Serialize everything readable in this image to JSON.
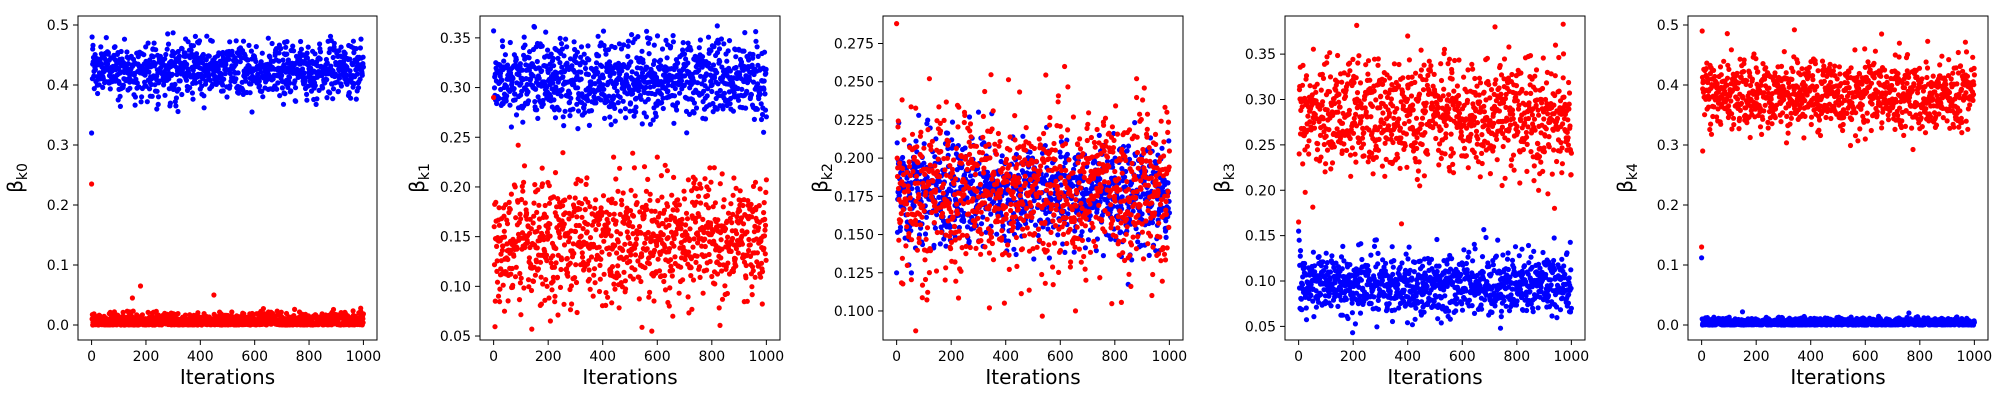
{
  "figure": {
    "background": "#ffffff",
    "colors": {
      "blue": "#0000ff",
      "red": "#ff0000"
    }
  },
  "chart_data": [
    {
      "type": "scatter",
      "xlabel": "Iterations",
      "ylabel": "β_k0",
      "ylabel_base": "β",
      "ylabel_sub": "k0",
      "xlim": [
        -50,
        1050
      ],
      "ylim": [
        -0.025,
        0.515
      ],
      "xticks": [
        0,
        200,
        400,
        600,
        800,
        1000
      ],
      "yticks": [
        0.0,
        0.1,
        0.2,
        0.3,
        0.4,
        0.5
      ],
      "ytick_labels": [
        "0.0",
        "0.1",
        "0.2",
        "0.3",
        "0.4",
        "0.5"
      ],
      "iterations": 1000,
      "series": [
        {
          "color": "#0000ff",
          "mean": 0.425,
          "spread": 0.022,
          "initial": [
            0.32,
            0.48,
            0.46
          ],
          "points": [
            [
              300,
              0.487
            ],
            [
              650,
              0.478
            ],
            [
              240,
              0.36
            ],
            [
              590,
              0.355
            ]
          ]
        },
        {
          "color": "#ff0000",
          "mean": 0.006,
          "spread": 0.008,
          "min": 0.0,
          "initial": [
            0.235,
            0.01
          ],
          "points": [
            [
              180,
              0.065
            ],
            [
              450,
              0.05
            ],
            [
              150,
              0.045
            ],
            [
              990,
              0.028
            ]
          ]
        }
      ]
    },
    {
      "type": "scatter",
      "xlabel": "Iterations",
      "ylabel": "β_k1",
      "ylabel_base": "β",
      "ylabel_sub": "k1",
      "xlim": [
        -50,
        1050
      ],
      "ylim": [
        0.046,
        0.372
      ],
      "xticks": [
        0,
        200,
        400,
        600,
        800,
        1000
      ],
      "yticks": [
        0.05,
        0.1,
        0.15,
        0.2,
        0.25,
        0.3,
        0.35
      ],
      "ytick_labels": [
        "0.05",
        "0.10",
        "0.15",
        "0.20",
        "0.25",
        "0.30",
        "0.35"
      ],
      "iterations": 1000,
      "series": [
        {
          "color": "#0000ff",
          "mean": 0.308,
          "spread": 0.02,
          "initial": [
            0.357,
            0.29
          ],
          "points": [
            [
              820,
              0.362
            ],
            [
              990,
              0.255
            ]
          ]
        },
        {
          "color": "#ff0000",
          "mean": 0.145,
          "spread": 0.03,
          "initial": [
            0.29,
            0.16
          ],
          "points": [
            [
              40,
              0.075
            ],
            [
              580,
              0.055
            ],
            [
              440,
              0.23
            ],
            [
              510,
              0.234
            ],
            [
              600,
              0.23
            ]
          ]
        }
      ]
    },
    {
      "type": "scatter",
      "xlabel": "Iterations",
      "ylabel": "β_k2",
      "ylabel_base": "β",
      "ylabel_sub": "k2",
      "xlim": [
        -50,
        1050
      ],
      "ylim": [
        0.081,
        0.293
      ],
      "xticks": [
        0,
        200,
        400,
        600,
        800,
        1000
      ],
      "yticks": [
        0.1,
        0.125,
        0.15,
        0.175,
        0.2,
        0.225,
        0.25,
        0.275
      ],
      "ytick_labels": [
        "0.100",
        "0.125",
        "0.150",
        "0.175",
        "0.200",
        "0.225",
        "0.250",
        "0.275"
      ],
      "iterations": 1000,
      "series": [
        {
          "color": "#0000ff",
          "mean": 0.176,
          "spread": 0.018,
          "initial": [
            0.125,
            0.21
          ],
          "points": []
        },
        {
          "color": "#ff0000",
          "mean": 0.178,
          "spread": 0.028,
          "initial": [
            0.288,
            0.2
          ],
          "points": [
            [
              70,
              0.087
            ],
            [
              340,
              0.102
            ],
            [
              120,
              0.252
            ],
            [
              880,
              0.252
            ]
          ]
        }
      ]
    },
    {
      "type": "scatter",
      "xlabel": "Iterations",
      "ylabel": "β_k3",
      "ylabel_base": "β",
      "ylabel_sub": "k3",
      "xlim": [
        -50,
        1050
      ],
      "ylim": [
        0.035,
        0.392
      ],
      "xticks": [
        0,
        200,
        400,
        600,
        800,
        1000
      ],
      "yticks": [
        0.05,
        0.1,
        0.15,
        0.2,
        0.25,
        0.3,
        0.35
      ],
      "ytick_labels": [
        "0.05",
        "0.10",
        "0.15",
        "0.20",
        "0.25",
        "0.30",
        "0.35"
      ],
      "iterations": 1000,
      "series": [
        {
          "color": "#0000ff",
          "mean": 0.096,
          "spread": 0.017,
          "initial": [
            0.155,
            0.145
          ],
          "points": [
            [
              740,
              0.048
            ],
            [
              280,
              0.145
            ]
          ]
        },
        {
          "color": "#ff0000",
          "mean": 0.283,
          "spread": 0.032,
          "initial": [
            0.165,
            0.24
          ],
          "points": [
            [
              720,
              0.38
            ],
            [
              970,
              0.383
            ],
            [
              880,
              0.2
            ],
            [
              400,
              0.37
            ]
          ]
        }
      ]
    },
    {
      "type": "scatter",
      "xlabel": "Iterations",
      "ylabel": "β_k4",
      "ylabel_base": "β",
      "ylabel_sub": "k4",
      "xlim": [
        -50,
        1050
      ],
      "ylim": [
        -0.025,
        0.515
      ],
      "xticks": [
        0,
        200,
        400,
        600,
        800,
        1000
      ],
      "yticks": [
        0.0,
        0.1,
        0.2,
        0.3,
        0.4,
        0.5
      ],
      "ytick_labels": [
        "0.0",
        "0.1",
        "0.2",
        "0.3",
        "0.4",
        "0.5"
      ],
      "iterations": 1000,
      "series": [
        {
          "color": "#0000ff",
          "mean": 0.004,
          "spread": 0.004,
          "min": 0.0,
          "initial": [
            0.112,
            0.01
          ],
          "points": [
            [
              150,
              0.022
            ],
            [
              760,
              0.02
            ]
          ]
        },
        {
          "color": "#ff0000",
          "mean": 0.385,
          "spread": 0.03,
          "initial": [
            0.13,
            0.49,
            0.29
          ],
          "points": [
            [
              340,
              0.492
            ],
            [
              660,
              0.485
            ],
            [
              600,
              0.31
            ]
          ]
        }
      ]
    }
  ]
}
